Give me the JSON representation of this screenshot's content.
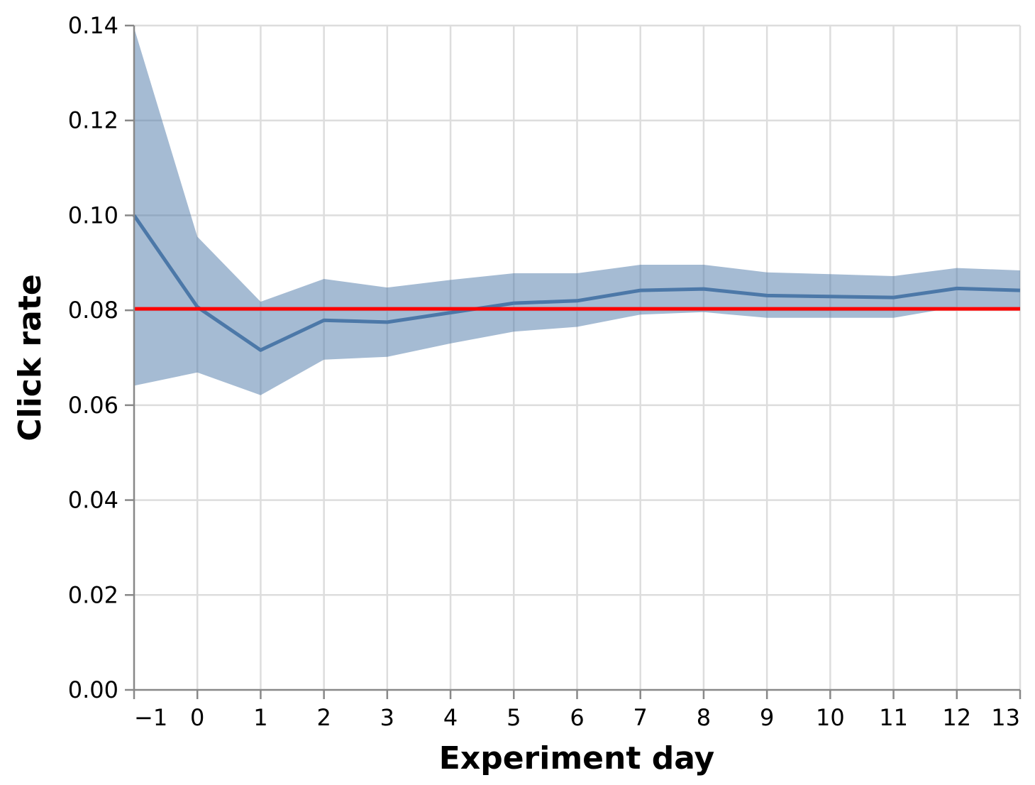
{
  "chart_data": {
    "type": "line",
    "xlabel": "Experiment day",
    "ylabel": "Click rate",
    "xlim": [
      -1,
      13
    ],
    "ylim": [
      0,
      0.14
    ],
    "x_ticks": [
      -1,
      0,
      1,
      2,
      3,
      4,
      5,
      6,
      7,
      8,
      9,
      10,
      11,
      12,
      13
    ],
    "x_tick_labels": [
      "−1",
      "0",
      "1",
      "2",
      "3",
      "4",
      "5",
      "6",
      "7",
      "8",
      "9",
      "10",
      "11",
      "12",
      "13"
    ],
    "y_ticks": [
      0,
      0.02,
      0.04,
      0.06,
      0.08,
      0.1,
      0.12,
      0.14
    ],
    "y_tick_labels": [
      "0.00",
      "0.02",
      "0.04",
      "0.06",
      "0.08",
      "0.10",
      "0.12",
      "0.14"
    ],
    "grid": true,
    "series": [
      {
        "x": [
          -1,
          0,
          1,
          2,
          3,
          4,
          5,
          6,
          7,
          8,
          9,
          10,
          11,
          12,
          13
        ],
        "y": [
          0.1,
          0.0807,
          0.0716,
          0.0779,
          0.0775,
          0.0795,
          0.0815,
          0.082,
          0.0842,
          0.0845,
          0.0831,
          0.0829,
          0.0827,
          0.0846,
          0.0842
        ],
        "lower": [
          0.0641,
          0.0669,
          0.0621,
          0.0696,
          0.0702,
          0.073,
          0.0755,
          0.0765,
          0.0791,
          0.0796,
          0.0784,
          0.0784,
          0.0784,
          0.0807,
          0.0806
        ],
        "upper": [
          0.1395,
          0.0955,
          0.0818,
          0.0866,
          0.0848,
          0.0864,
          0.0878,
          0.0878,
          0.0896,
          0.0896,
          0.088,
          0.0876,
          0.0872,
          0.0889,
          0.0884
        ]
      }
    ],
    "reference_line": {
      "y": 0.0803
    },
    "colors": {
      "line": "#4c78a8",
      "band": "#4c78a8",
      "reference": "#ff0000"
    }
  }
}
